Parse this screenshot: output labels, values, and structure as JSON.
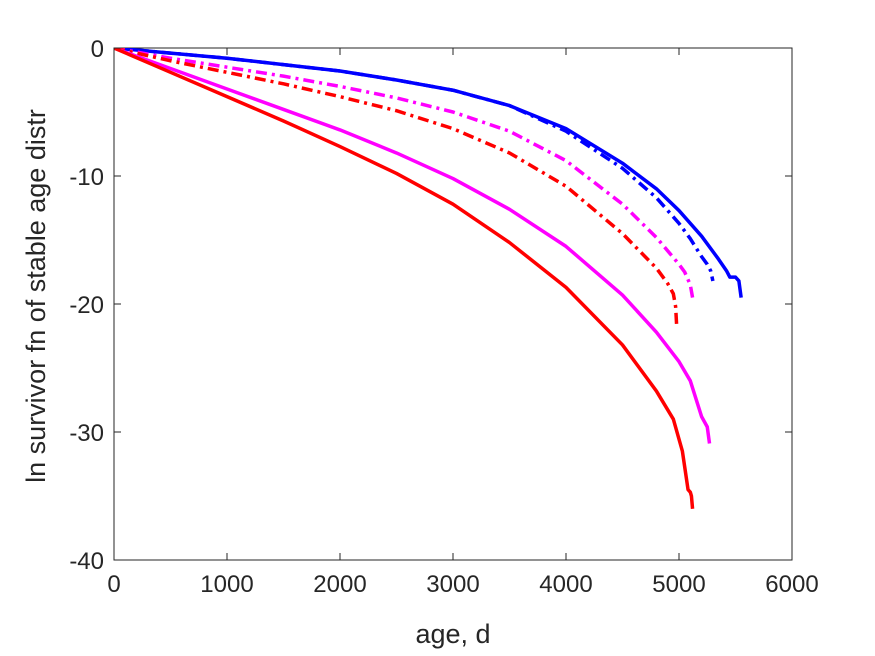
{
  "chart_data": {
    "type": "line",
    "title": "",
    "xlabel": "age, d",
    "ylabel": "ln survivor fn of stable age distr",
    "xlim": [
      0,
      6000
    ],
    "ylim": [
      -40,
      0
    ],
    "xticks": [
      0,
      1000,
      2000,
      3000,
      4000,
      5000,
      6000
    ],
    "yticks": [
      0,
      -10,
      -20,
      -30,
      -40
    ],
    "xtick_labels": [
      "0",
      "1000",
      "2000",
      "3000",
      "4000",
      "5000",
      "6000"
    ],
    "ytick_labels": [
      "0",
      "-10",
      "-20",
      "-30",
      "-40"
    ],
    "grid": false,
    "legend": "none",
    "series": [
      {
        "color": "#0000ff",
        "style": "solid",
        "x": [
          0,
          500,
          1000,
          1500,
          2000,
          2500,
          3000,
          3500,
          4000,
          4500,
          4800,
          5000,
          5200,
          5350,
          5420,
          5450,
          5500,
          5530,
          5550
        ],
        "y": [
          0,
          -0.4,
          -0.8,
          -1.3,
          -1.8,
          -2.5,
          -3.3,
          -4.5,
          -6.3,
          -9.0,
          -11.0,
          -12.7,
          -14.7,
          -16.5,
          -17.4,
          -17.9,
          -17.9,
          -18.2,
          -19.5
        ]
      },
      {
        "color": "#0000ff",
        "style": "dashdot",
        "x": [
          0,
          500,
          1000,
          1500,
          2000,
          2500,
          3000,
          3500,
          4000,
          4500,
          4800,
          5000,
          5100,
          5200,
          5250,
          5280,
          5300
        ],
        "y": [
          0,
          -0.4,
          -0.8,
          -1.3,
          -1.8,
          -2.5,
          -3.3,
          -4.5,
          -6.5,
          -9.4,
          -11.7,
          -13.7,
          -14.9,
          -16.3,
          -16.9,
          -17.4,
          -18.2
        ]
      },
      {
        "color": "#ff00ff",
        "style": "dashdot",
        "x": [
          0,
          500,
          1000,
          1500,
          2000,
          2500,
          3000,
          3500,
          4000,
          4500,
          4800,
          5000,
          5050,
          5100,
          5120
        ],
        "y": [
          0,
          -0.8,
          -1.5,
          -2.2,
          -3.0,
          -3.9,
          -5.0,
          -6.5,
          -8.8,
          -12.2,
          -14.8,
          -16.9,
          -17.5,
          -18.5,
          -19.5
        ]
      },
      {
        "color": "#ff0000",
        "style": "dashdot",
        "x": [
          0,
          500,
          1000,
          1500,
          2000,
          2500,
          3000,
          3500,
          4000,
          4500,
          4800,
          4900,
          4950,
          4970,
          4980
        ],
        "y": [
          0,
          -1.0,
          -1.9,
          -2.8,
          -3.8,
          -4.9,
          -6.3,
          -8.2,
          -10.8,
          -14.5,
          -17.2,
          -18.4,
          -19.2,
          -20.2,
          -21.8
        ]
      },
      {
        "color": "#ff00ff",
        "style": "solid",
        "x": [
          0,
          500,
          1000,
          1500,
          2000,
          2500,
          3000,
          3500,
          4000,
          4500,
          4800,
          5000,
          5100,
          5200,
          5250,
          5270
        ],
        "y": [
          0,
          -1.6,
          -3.2,
          -4.8,
          -6.4,
          -8.2,
          -10.2,
          -12.6,
          -15.5,
          -19.3,
          -22.2,
          -24.5,
          -26.0,
          -28.8,
          -29.6,
          -30.9
        ]
      },
      {
        "color": "#ff0000",
        "style": "solid",
        "x": [
          0,
          500,
          1000,
          1500,
          2000,
          2500,
          3000,
          3500,
          4000,
          4500,
          4800,
          4950,
          5030,
          5050,
          5080,
          5100,
          5110,
          5120
        ],
        "y": [
          0,
          -1.9,
          -3.8,
          -5.7,
          -7.7,
          -9.8,
          -12.2,
          -15.2,
          -18.7,
          -23.2,
          -26.8,
          -29.0,
          -31.5,
          -32.7,
          -34.5,
          -34.7,
          -35.0,
          -36.0
        ]
      }
    ]
  }
}
